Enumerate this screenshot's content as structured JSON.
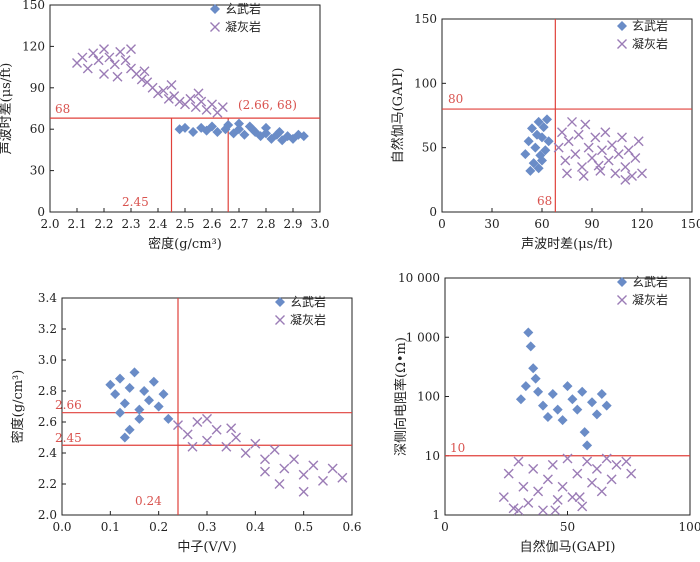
{
  "colors": {
    "basalt": "#6a8cc7",
    "tuff": "#9b7cb6",
    "threshold": "#e0413b",
    "axis": "#222222"
  },
  "chart_data": [
    {
      "type": "scatter",
      "xlabel": "密度(g/cm³)",
      "ylabel": "声波时差(μs/ft)",
      "xlim": [
        2.0,
        3.0
      ],
      "ylim": [
        0,
        150
      ],
      "xticks": [
        "2.0",
        "2.1",
        "2.2",
        "2.3",
        "2.4",
        "2.5",
        "2.6",
        "2.7",
        "2.8",
        "2.9",
        "3.0"
      ],
      "yticks": [
        "0",
        "30",
        "60",
        "90",
        "120",
        "150"
      ],
      "legend": [
        "玄武岩",
        "凝灰岩"
      ],
      "thresholds": {
        "x": [
          2.45,
          2.66
        ],
        "y": [
          68
        ]
      },
      "annotations": [
        "68",
        "2.45",
        "(2.66, 68)"
      ],
      "series": [
        {
          "name": "玄武岩",
          "marker": "diamond",
          "points": [
            [
              2.48,
              60
            ],
            [
              2.5,
              61
            ],
            [
              2.53,
              58
            ],
            [
              2.56,
              61
            ],
            [
              2.58,
              59
            ],
            [
              2.6,
              62
            ],
            [
              2.62,
              58
            ],
            [
              2.65,
              60
            ],
            [
              2.68,
              57
            ],
            [
              2.7,
              60
            ],
            [
              2.72,
              56
            ],
            [
              2.74,
              62
            ],
            [
              2.76,
              58
            ],
            [
              2.78,
              55
            ],
            [
              2.8,
              57
            ],
            [
              2.82,
              53
            ],
            [
              2.84,
              56
            ],
            [
              2.86,
              52
            ],
            [
              2.88,
              55
            ],
            [
              2.9,
              53
            ],
            [
              2.92,
              56
            ],
            [
              2.94,
              55
            ],
            [
              2.66,
              63
            ],
            [
              2.7,
              64
            ],
            [
              2.75,
              60
            ],
            [
              2.8,
              61
            ],
            [
              2.85,
              58
            ]
          ]
        },
        {
          "name": "凝灰岩",
          "marker": "cross",
          "points": [
            [
              2.1,
              108
            ],
            [
              2.12,
              112
            ],
            [
              2.14,
              104
            ],
            [
              2.16,
              115
            ],
            [
              2.18,
              110
            ],
            [
              2.2,
              118
            ],
            [
              2.22,
              112
            ],
            [
              2.24,
              107
            ],
            [
              2.26,
              116
            ],
            [
              2.28,
              110
            ],
            [
              2.3,
              118
            ],
            [
              2.3,
              104
            ],
            [
              2.32,
              100
            ],
            [
              2.34,
              96
            ],
            [
              2.36,
              94
            ],
            [
              2.38,
              90
            ],
            [
              2.4,
              86
            ],
            [
              2.42,
              88
            ],
            [
              2.44,
              82
            ],
            [
              2.46,
              84
            ],
            [
              2.48,
              80
            ],
            [
              2.5,
              78
            ],
            [
              2.52,
              82
            ],
            [
              2.54,
              76
            ],
            [
              2.56,
              80
            ],
            [
              2.58,
              74
            ],
            [
              2.6,
              78
            ],
            [
              2.62,
              72
            ],
            [
              2.64,
              76
            ],
            [
              2.2,
              100
            ],
            [
              2.25,
              98
            ],
            [
              2.35,
              102
            ],
            [
              2.45,
              92
            ],
            [
              2.55,
              86
            ]
          ]
        }
      ]
    },
    {
      "type": "scatter",
      "xlabel": "声波时差(μs/ft)",
      "ylabel": "自然伽马(GAPI)",
      "xlim": [
        0,
        150
      ],
      "ylim": [
        0,
        150
      ],
      "xticks": [
        "0",
        "30",
        "60",
        "90",
        "120",
        "150"
      ],
      "yticks": [
        "0",
        "50",
        "100",
        "150"
      ],
      "legend": [
        "玄武岩",
        "凝灰岩"
      ],
      "thresholds": {
        "x": [
          68
        ],
        "y": [
          80
        ]
      },
      "annotations": [
        "80",
        "68"
      ],
      "series": [
        {
          "name": "玄武岩",
          "marker": "diamond",
          "points": [
            [
              50,
              45
            ],
            [
              52,
              55
            ],
            [
              54,
              65
            ],
            [
              55,
              38
            ],
            [
              56,
              50
            ],
            [
              57,
              60
            ],
            [
              58,
              70
            ],
            [
              59,
              44
            ],
            [
              60,
              58
            ],
            [
              61,
              66
            ],
            [
              62,
              48
            ],
            [
              63,
              72
            ],
            [
              64,
              55
            ],
            [
              53,
              32
            ],
            [
              58,
              34
            ],
            [
              60,
              40
            ]
          ]
        },
        {
          "name": "凝灰岩",
          "marker": "cross",
          "points": [
            [
              70,
              50
            ],
            [
              72,
              62
            ],
            [
              74,
              40
            ],
            [
              76,
              55
            ],
            [
              78,
              70
            ],
            [
              80,
              45
            ],
            [
              82,
              60
            ],
            [
              84,
              35
            ],
            [
              86,
              68
            ],
            [
              88,
              50
            ],
            [
              90,
              42
            ],
            [
              92,
              58
            ],
            [
              94,
              36
            ],
            [
              96,
              48
            ],
            [
              98,
              62
            ],
            [
              100,
              40
            ],
            [
              102,
              52
            ],
            [
              104,
              30
            ],
            [
              106,
              45
            ],
            [
              108,
              58
            ],
            [
              110,
              35
            ],
            [
              112,
              48
            ],
            [
              114,
              28
            ],
            [
              116,
              42
            ],
            [
              118,
              55
            ],
            [
              120,
              30
            ],
            [
              75,
              30
            ],
            [
              85,
              28
            ],
            [
              95,
              32
            ],
            [
              110,
              25
            ]
          ]
        }
      ]
    },
    {
      "type": "scatter",
      "xlabel": "中子(V/V)",
      "ylabel": "密度(g/cm³)",
      "xlim": [
        0,
        0.6
      ],
      "ylim": [
        2.0,
        3.4
      ],
      "xticks": [
        "0.0",
        "0.1",
        "0.2",
        "0.3",
        "0.4",
        "0.5",
        "0.6"
      ],
      "yticks": [
        "2.0",
        "2.2",
        "2.4",
        "2.6",
        "2.8",
        "3.0",
        "3.2",
        "3.4"
      ],
      "legend": [
        "玄武岩",
        "凝灰岩"
      ],
      "thresholds": {
        "x": [
          0.24
        ],
        "y": [
          2.45,
          2.66
        ]
      },
      "annotations": [
        "2.66",
        "2.45",
        "0.24"
      ],
      "series": [
        {
          "name": "玄武岩",
          "marker": "diamond",
          "points": [
            [
              0.1,
              2.84
            ],
            [
              0.11,
              2.78
            ],
            [
              0.12,
              2.88
            ],
            [
              0.13,
              2.72
            ],
            [
              0.14,
              2.82
            ],
            [
              0.15,
              2.92
            ],
            [
              0.16,
              2.68
            ],
            [
              0.17,
              2.8
            ],
            [
              0.18,
              2.74
            ],
            [
              0.19,
              2.86
            ],
            [
              0.2,
              2.7
            ],
            [
              0.21,
              2.78
            ],
            [
              0.22,
              2.62
            ],
            [
              0.14,
              2.55
            ],
            [
              0.13,
              2.5
            ],
            [
              0.16,
              2.62
            ],
            [
              0.12,
              2.66
            ]
          ]
        },
        {
          "name": "凝灰岩",
          "marker": "cross",
          "points": [
            [
              0.24,
              2.58
            ],
            [
              0.26,
              2.52
            ],
            [
              0.28,
              2.6
            ],
            [
              0.3,
              2.48
            ],
            [
              0.32,
              2.55
            ],
            [
              0.34,
              2.44
            ],
            [
              0.36,
              2.5
            ],
            [
              0.38,
              2.4
            ],
            [
              0.4,
              2.46
            ],
            [
              0.42,
              2.36
            ],
            [
              0.44,
              2.42
            ],
            [
              0.46,
              2.3
            ],
            [
              0.48,
              2.36
            ],
            [
              0.5,
              2.26
            ],
            [
              0.52,
              2.32
            ],
            [
              0.54,
              2.22
            ],
            [
              0.56,
              2.3
            ],
            [
              0.58,
              2.24
            ],
            [
              0.3,
              2.62
            ],
            [
              0.35,
              2.56
            ],
            [
              0.45,
              2.2
            ],
            [
              0.5,
              2.15
            ],
            [
              0.27,
              2.44
            ],
            [
              0.42,
              2.28
            ]
          ]
        }
      ]
    },
    {
      "type": "scatter",
      "xlabel": "自然伽马(GAPI)",
      "ylabel": "深侧向电阻率(Ω•m)",
      "xlim": [
        0,
        100
      ],
      "ylim": [
        1,
        10000
      ],
      "yscale": "log",
      "xticks": [
        "0",
        "50",
        "100"
      ],
      "yticks": [
        "1",
        "10",
        "100",
        "1 000",
        "10 000"
      ],
      "legend": [
        "玄武岩",
        "凝灰岩"
      ],
      "thresholds": {
        "y": [
          10
        ]
      },
      "annotations": [
        "10"
      ],
      "series": [
        {
          "name": "玄武岩",
          "marker": "diamond",
          "points": [
            [
              31,
              90
            ],
            [
              33,
              150
            ],
            [
              34,
              1200
            ],
            [
              35,
              700
            ],
            [
              36,
              300
            ],
            [
              37,
              200
            ],
            [
              38,
              120
            ],
            [
              40,
              70
            ],
            [
              42,
              45
            ],
            [
              44,
              110
            ],
            [
              46,
              60
            ],
            [
              48,
              40
            ],
            [
              50,
              150
            ],
            [
              52,
              90
            ],
            [
              54,
              60
            ],
            [
              56,
              120
            ],
            [
              57,
              25
            ],
            [
              58,
              15
            ],
            [
              60,
              80
            ],
            [
              62,
              50
            ],
            [
              64,
              110
            ],
            [
              66,
              70
            ]
          ]
        },
        {
          "name": "凝灰岩",
          "marker": "cross",
          "points": [
            [
              24,
              2
            ],
            [
              26,
              5
            ],
            [
              28,
              1.3
            ],
            [
              30,
              8
            ],
            [
              32,
              3
            ],
            [
              34,
              1.6
            ],
            [
              36,
              6
            ],
            [
              38,
              2.5
            ],
            [
              40,
              1.2
            ],
            [
              42,
              4
            ],
            [
              44,
              7
            ],
            [
              46,
              1.8
            ],
            [
              48,
              3
            ],
            [
              50,
              9
            ],
            [
              52,
              2
            ],
            [
              54,
              5
            ],
            [
              56,
              1.4
            ],
            [
              58,
              8
            ],
            [
              60,
              3.5
            ],
            [
              62,
              6
            ],
            [
              64,
              2.5
            ],
            [
              66,
              9
            ],
            [
              68,
              4
            ],
            [
              70,
              7
            ],
            [
              74,
              8
            ],
            [
              76,
              5
            ],
            [
              30,
              1.2
            ],
            [
              45,
              1.2
            ],
            [
              55,
              2
            ]
          ]
        }
      ]
    }
  ]
}
